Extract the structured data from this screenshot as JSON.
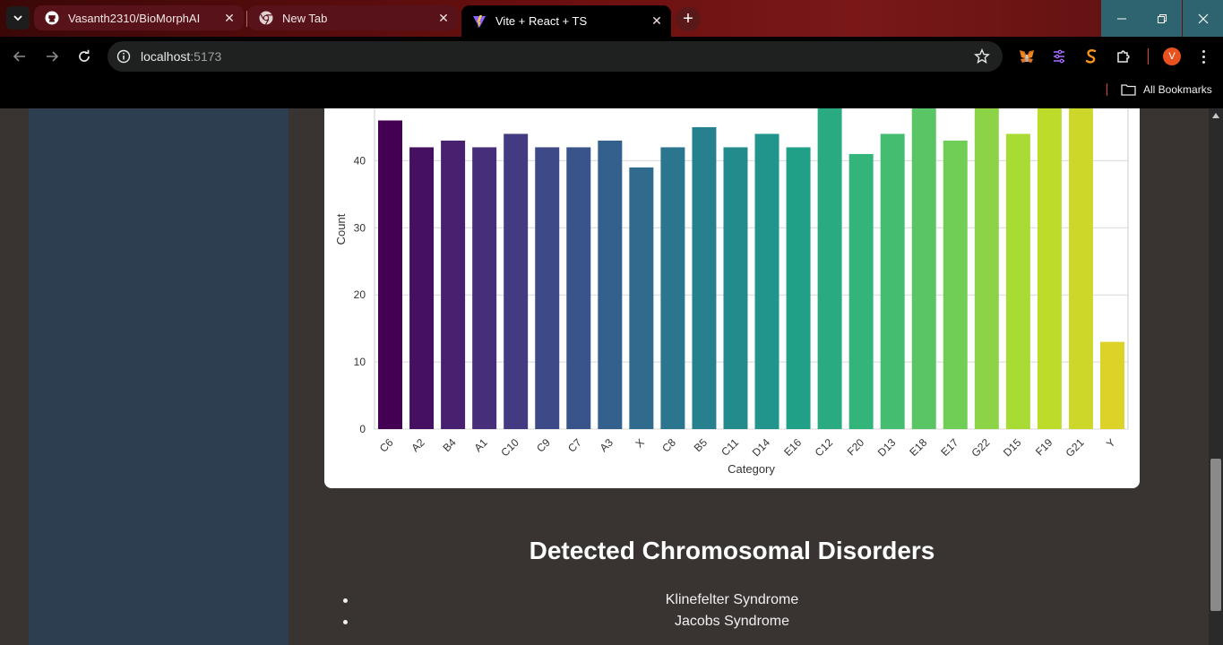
{
  "browser": {
    "tabs": [
      {
        "title": "Vasanth2310/BioMorphAI",
        "icon": "github-icon",
        "active": false
      },
      {
        "title": "New Tab",
        "icon": "chrome-icon",
        "active": false
      },
      {
        "title": "Vite + React + TS",
        "icon": "vite-icon",
        "active": true
      }
    ],
    "url_host": "localhost",
    "url_port": ":5173",
    "bookmarks_label": "All Bookmarks",
    "avatar_letter": "V"
  },
  "chart_data": {
    "type": "bar",
    "title": "",
    "xlabel": "Category",
    "ylabel": "Count",
    "categories": [
      "C6",
      "A2",
      "B4",
      "A1",
      "C10",
      "C9",
      "C7",
      "A3",
      "X",
      "C8",
      "B5",
      "C11",
      "D14",
      "E16",
      "C12",
      "F20",
      "D13",
      "E18",
      "E17",
      "G22",
      "D15",
      "F19",
      "G21",
      "Y"
    ],
    "values": [
      46,
      42,
      43,
      42,
      44,
      42,
      42,
      43,
      39,
      42,
      45,
      42,
      44,
      42,
      50,
      41,
      44,
      50,
      43,
      50,
      44,
      50,
      50,
      13
    ],
    "yticks": [
      0,
      10,
      20,
      30,
      40
    ],
    "ylim": [
      0,
      48.5
    ],
    "grid": true,
    "palette": "viridis"
  },
  "main": {
    "section_title": "Detected Chromosomal Disorders",
    "disorders": [
      "Klinefelter Syndrome",
      "Jacobs Syndrome"
    ]
  }
}
